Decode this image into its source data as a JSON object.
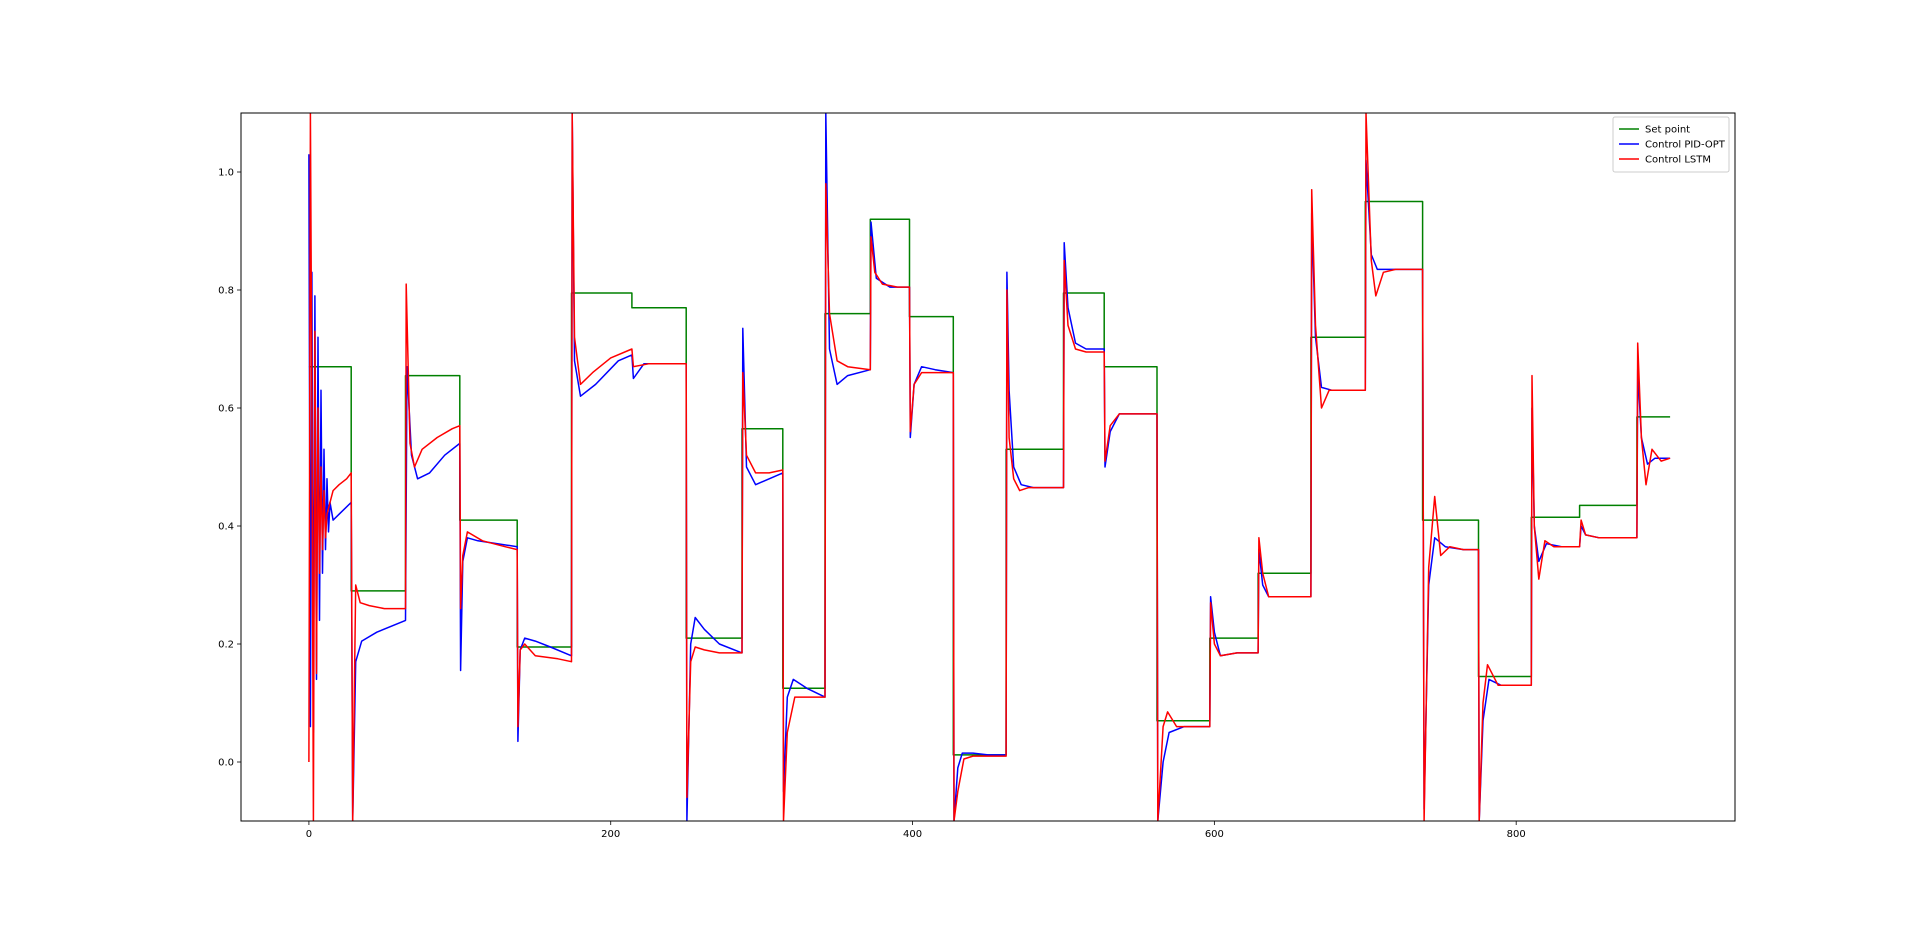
{
  "chart_data": {
    "type": "line",
    "title": "",
    "xlabel": "",
    "ylabel": "",
    "xlim": [
      -45,
      945
    ],
    "ylim": [
      -0.1,
      1.1
    ],
    "xticks": [
      0,
      200,
      400,
      600,
      800
    ],
    "yticks": [
      0.0,
      0.2,
      0.4,
      0.6,
      0.8,
      1.0
    ],
    "xtick_labels": [
      "0",
      "200",
      "400",
      "600",
      "800"
    ],
    "ytick_labels": [
      "0.0",
      "0.2",
      "0.4",
      "0.6",
      "0.8",
      "1.0"
    ],
    "grid": false,
    "legend_position": "top-right",
    "series": [
      {
        "name": "Set point",
        "color": "#008000",
        "step": true,
        "x": [
          0,
          28,
          64,
          100,
          138,
          174,
          214,
          250,
          287,
          314,
          342,
          372,
          398,
          427,
          462,
          500,
          527,
          562,
          597,
          629,
          664,
          700,
          738,
          775,
          810,
          842,
          880,
          902
        ],
        "y": [
          0.67,
          0.29,
          0.655,
          0.41,
          0.195,
          0.795,
          0.77,
          0.21,
          0.565,
          0.125,
          0.76,
          0.92,
          0.755,
          0.012,
          0.53,
          0.795,
          0.67,
          0.07,
          0.21,
          0.32,
          0.72,
          0.95,
          0.41,
          0.145,
          0.415,
          0.435,
          0.585,
          0.585
        ]
      },
      {
        "name": "Control PID-OPT",
        "color": "#0000ff",
        "x": [
          0,
          1,
          2,
          3,
          4,
          5,
          6,
          7,
          8,
          9,
          10,
          11,
          12,
          13,
          14,
          16,
          20,
          28,
          29,
          31,
          35,
          45,
          64,
          65,
          68,
          72,
          80,
          90,
          100,
          100.5,
          102,
          105,
          112,
          125,
          138,
          138.5,
          140,
          143,
          150,
          160,
          174,
          174.5,
          176,
          180,
          190,
          205,
          214,
          215,
          222,
          235,
          250,
          250.5,
          253,
          256,
          262,
          272,
          287,
          287.5,
          290,
          296,
          305,
          314,
          314.5,
          317,
          321,
          330,
          342,
          342.5,
          345,
          350,
          357,
          372,
          372.5,
          376,
          385,
          398,
          398.5,
          401,
          406,
          415,
          427,
          427.5,
          430,
          433,
          440,
          450,
          462,
          462.5,
          464,
          467,
          472,
          480,
          490,
          500,
          500.5,
          503,
          508,
          515,
          527,
          527.5,
          531,
          537,
          547,
          562,
          562.5,
          566,
          570,
          580,
          597,
          597.5,
          600,
          604,
          615,
          629,
          629.5,
          632,
          636,
          645,
          664,
          664.5,
          667,
          671,
          678,
          690,
          700,
          700.5,
          704,
          708,
          715,
          727,
          738,
          739,
          742,
          746,
          753,
          765,
          775,
          775.5,
          778,
          782,
          790,
          800,
          810,
          810.5,
          812,
          815,
          820,
          830,
          842,
          843,
          846,
          855,
          880,
          880.5,
          883,
          887,
          892,
          902
        ],
        "y": [
          1.03,
          0.06,
          0.83,
          0.05,
          0.79,
          0.14,
          0.72,
          0.24,
          0.63,
          0.32,
          0.53,
          0.36,
          0.48,
          0.39,
          0.44,
          0.41,
          0.42,
          0.44,
          -0.1,
          0.17,
          0.205,
          0.22,
          0.24,
          0.67,
          0.52,
          0.48,
          0.49,
          0.52,
          0.54,
          0.155,
          0.34,
          0.38,
          0.375,
          0.37,
          0.365,
          0.035,
          0.19,
          0.21,
          0.205,
          0.195,
          0.18,
          1.1,
          0.68,
          0.62,
          0.64,
          0.68,
          0.69,
          0.65,
          0.675,
          0.675,
          0.675,
          -0.1,
          0.2,
          0.245,
          0.225,
          0.2,
          0.185,
          0.735,
          0.5,
          0.47,
          0.48,
          0.49,
          -0.05,
          0.11,
          0.14,
          0.125,
          0.11,
          1.1,
          0.7,
          0.64,
          0.655,
          0.665,
          0.915,
          0.82,
          0.805,
          0.805,
          0.55,
          0.64,
          0.67,
          0.665,
          0.66,
          -0.1,
          -0.01,
          0.015,
          0.015,
          0.012,
          0.012,
          0.83,
          0.63,
          0.5,
          0.47,
          0.465,
          0.465,
          0.465,
          0.88,
          0.77,
          0.71,
          0.7,
          0.7,
          0.5,
          0.56,
          0.59,
          0.59,
          0.59,
          -0.1,
          0.0,
          0.05,
          0.06,
          0.06,
          0.28,
          0.22,
          0.18,
          0.185,
          0.185,
          0.36,
          0.3,
          0.28,
          0.28,
          0.28,
          0.93,
          0.72,
          0.635,
          0.63,
          0.63,
          0.63,
          1.02,
          0.86,
          0.835,
          0.835,
          0.835,
          0.835,
          -0.08,
          0.3,
          0.38,
          0.365,
          0.36,
          0.36,
          -0.1,
          0.07,
          0.14,
          0.13,
          0.13,
          0.13,
          0.6,
          0.4,
          0.34,
          0.37,
          0.365,
          0.365,
          0.4,
          0.385,
          0.38,
          0.38,
          0.665,
          0.55,
          0.505,
          0.515,
          0.515
        ]
      },
      {
        "name": "Control LSTM",
        "color": "#ff0000",
        "x": [
          0,
          1,
          2,
          3,
          4,
          5,
          6,
          7,
          8,
          9,
          10,
          11,
          12,
          14,
          16,
          20,
          25,
          28,
          29,
          31,
          34,
          40,
          50,
          64,
          64.5,
          67,
          70,
          75,
          85,
          95,
          100,
          100.5,
          102,
          105,
          115,
          130,
          138,
          138.5,
          140,
          143,
          150,
          165,
          174,
          174.5,
          176,
          180,
          188,
          200,
          214,
          215,
          225,
          250,
          250.5,
          253,
          256,
          262,
          272,
          287,
          287.5,
          290,
          296,
          305,
          314,
          314.5,
          317,
          322,
          330,
          342,
          342.5,
          345,
          350,
          357,
          372,
          372.5,
          375,
          380,
          390,
          398,
          398.5,
          401,
          406,
          415,
          427,
          427.5,
          430,
          434,
          440,
          450,
          462,
          462.5,
          464,
          467,
          471,
          477,
          485,
          500,
          500.5,
          503,
          508,
          515,
          527,
          527.5,
          531,
          537,
          547,
          562,
          562.5,
          566,
          569,
          575,
          585,
          597,
          597.5,
          600,
          604,
          615,
          629,
          629.5,
          632,
          636,
          645,
          664,
          664.5,
          667,
          671,
          676,
          690,
          700,
          700.5,
          704,
          707,
          712,
          720,
          738,
          739,
          742,
          746,
          750,
          756,
          765,
          775,
          775.5,
          778,
          781,
          788,
          800,
          810,
          810.5,
          812,
          815,
          819,
          825,
          842,
          843,
          846,
          855,
          880,
          880.5,
          883,
          886,
          890,
          896,
          902
        ],
        "y": [
          0.0,
          1.1,
          0.6,
          -0.1,
          0.73,
          0.15,
          0.6,
          0.32,
          0.5,
          0.36,
          0.46,
          0.38,
          0.42,
          0.44,
          0.46,
          0.47,
          0.48,
          0.49,
          -0.1,
          0.3,
          0.27,
          0.265,
          0.26,
          0.26,
          0.81,
          0.54,
          0.5,
          0.53,
          0.55,
          0.565,
          0.57,
          0.26,
          0.35,
          0.39,
          0.375,
          0.365,
          0.36,
          0.06,
          0.19,
          0.2,
          0.18,
          0.175,
          0.17,
          1.1,
          0.72,
          0.64,
          0.66,
          0.685,
          0.7,
          0.67,
          0.675,
          0.675,
          -0.06,
          0.17,
          0.195,
          0.19,
          0.185,
          0.185,
          0.66,
          0.52,
          0.49,
          0.49,
          0.495,
          -0.1,
          0.05,
          0.11,
          0.11,
          0.11,
          0.98,
          0.76,
          0.68,
          0.67,
          0.665,
          0.89,
          0.83,
          0.81,
          0.805,
          0.805,
          0.56,
          0.64,
          0.66,
          0.66,
          0.66,
          -0.1,
          -0.05,
          0.005,
          0.01,
          0.01,
          0.01,
          0.8,
          0.55,
          0.48,
          0.46,
          0.465,
          0.465,
          0.465,
          0.85,
          0.74,
          0.7,
          0.695,
          0.695,
          0.51,
          0.57,
          0.59,
          0.59,
          0.59,
          -0.1,
          0.06,
          0.085,
          0.06,
          0.06,
          0.06,
          0.27,
          0.2,
          0.18,
          0.185,
          0.185,
          0.38,
          0.32,
          0.28,
          0.28,
          0.28,
          0.97,
          0.74,
          0.6,
          0.63,
          0.63,
          0.63,
          1.1,
          0.85,
          0.79,
          0.83,
          0.835,
          0.835,
          -0.1,
          0.33,
          0.45,
          0.35,
          0.365,
          0.36,
          0.36,
          -0.1,
          0.1,
          0.165,
          0.13,
          0.13,
          0.13,
          0.655,
          0.4,
          0.31,
          0.375,
          0.365,
          0.365,
          0.41,
          0.385,
          0.38,
          0.38,
          0.71,
          0.55,
          0.47,
          0.53,
          0.51,
          0.515
        ]
      }
    ]
  }
}
